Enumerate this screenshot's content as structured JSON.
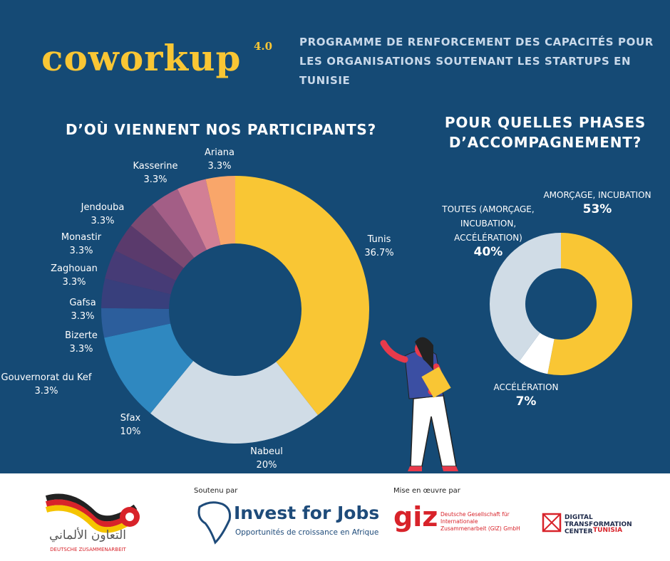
{
  "header": {
    "logo": "coworkup",
    "logo_version": "4.0",
    "program": "PROGRAMME DE RENFORCEMENT DES CAPACITÉS POUR LES ORGANISATIONS SOUTENANT LES STARTUPS EN TUNISIE"
  },
  "chart_data": [
    {
      "type": "donut",
      "title": "D’OÙ VIENNENT NOS PARTICIPANTS?",
      "categories": [
        "Tunis",
        "Nabeul",
        "Sfax",
        "Gouvernorat du Kef",
        "Bizerte",
        "Gafsa",
        "Zaghouan",
        "Monastir",
        "Jendouba",
        "Kasserine",
        "Ariana"
      ],
      "values": [
        36.7,
        20,
        10,
        3.3,
        3.3,
        3.3,
        3.3,
        3.3,
        3.3,
        3.3,
        3.3
      ],
      "value_labels": [
        "36.7%",
        "20%",
        "10%",
        "3.3%",
        "3.3%",
        "3.3%",
        "3.3%",
        "3.3%",
        "3.3%",
        "3.3%",
        "3.3%"
      ],
      "colors": [
        "#f9c634",
        "#d0dce6",
        "#2f88c0",
        "#2c5e9c",
        "#383f7c",
        "#463b76",
        "#5a3a6c",
        "#7c4a72",
        "#a35e86",
        "#d27f95",
        "#f9a66a"
      ]
    },
    {
      "type": "donut",
      "title": "POUR QUELLES PHASES D’ACCOMPAGNEMENT?",
      "categories": [
        "AMORÇAGE, INCUBATION",
        "ACCÉLÉRATION",
        "TOUTES (AMORÇAGE, INCUBATION, ACCÉLÉRATION)"
      ],
      "values": [
        53,
        7,
        40
      ],
      "value_labels": [
        "53%",
        "7%",
        "40%"
      ],
      "colors": [
        "#f9c634",
        "#ffffff",
        "#d0dce6"
      ]
    }
  ],
  "footer": {
    "arabic": "التعاون الألماني",
    "deutsche": "DEUTSCHE ZUSAMMENARBEIT",
    "supported_by": "Soutenu par",
    "invest": "Invest for Jobs",
    "invest_sub": "Opportunités de croissance en Afrique",
    "implemented_by": "Mise en œuvre par",
    "giz": "giz",
    "giz_name": "Deutsche Gesellschaft für Internationale Zusammenarbeit (GIZ) GmbH",
    "dtc": "DIGITAL TRANSFORMATION CENTER",
    "dtc_country": "TUNISIA"
  }
}
